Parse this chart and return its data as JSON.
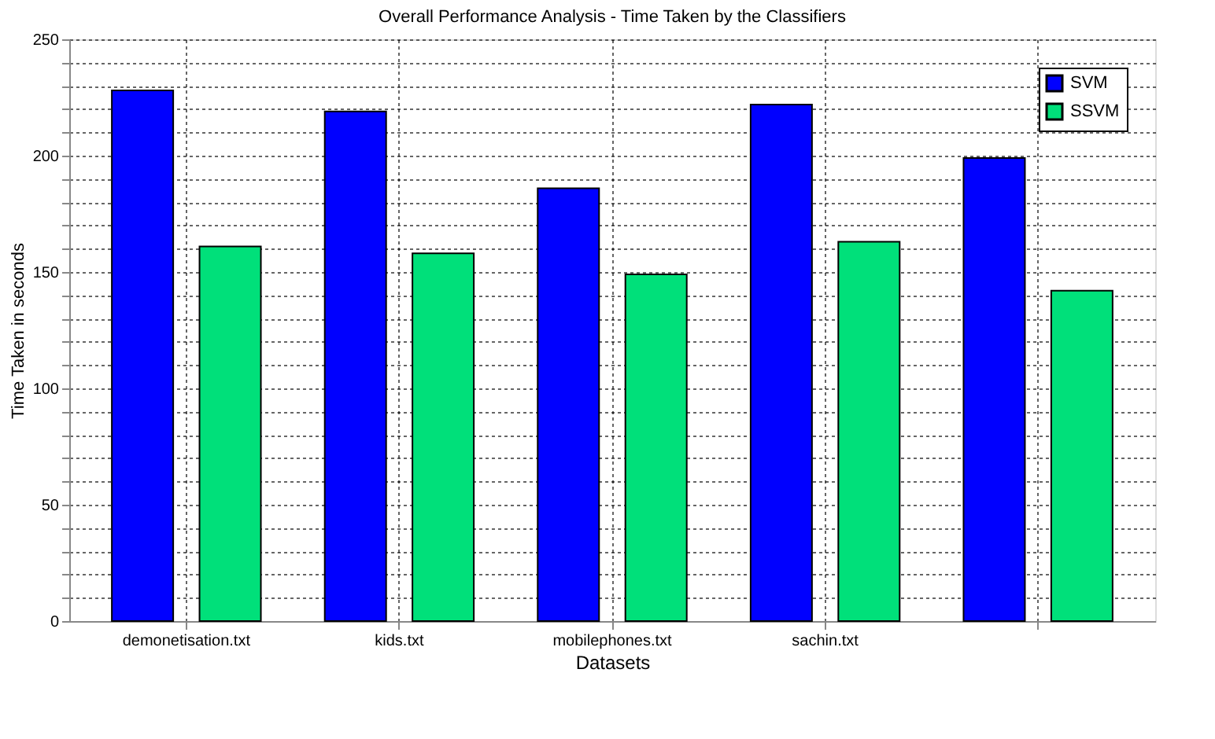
{
  "chart_data": {
    "type": "bar",
    "title": "Overall Performance Analysis - Time Taken by the Classifiers",
    "xlabel": "Datasets",
    "ylabel": "Time Taken in seconds",
    "categories": [
      "demonetisation.txt",
      "kids.txt",
      "mobilephones.txt",
      "sachin.txt",
      null
    ],
    "series": [
      {
        "name": "SVM",
        "color": "#0000ff",
        "values": [
          228,
          219,
          186,
          222,
          199
        ]
      },
      {
        "name": "SSVM",
        "color": "#00e07a",
        "values": [
          161,
          158,
          149,
          163,
          142
        ]
      }
    ],
    "ylim": [
      0,
      250
    ],
    "yticks": [
      0,
      {
        "value": 10,
        "label": null
      },
      {
        "value": 20,
        "label": null
      },
      {
        "value": 30,
        "label": null
      },
      {
        "value": 40,
        "label": null
      },
      50,
      {
        "value": 60,
        "label": null
      },
      {
        "value": 70,
        "label": null
      },
      {
        "value": 80,
        "label": null
      },
      {
        "value": 90,
        "label": null
      },
      100,
      {
        "value": 110,
        "label": null
      },
      {
        "value": 120,
        "label": null
      },
      {
        "value": 130,
        "label": null
      },
      {
        "value": 140,
        "label": null
      },
      150,
      {
        "value": 160,
        "label": null
      },
      {
        "value": 170,
        "label": null
      },
      {
        "value": 180,
        "label": null
      },
      {
        "value": 190,
        "label": null
      },
      200,
      {
        "value": 210,
        "label": null
      },
      {
        "value": 220,
        "label": null
      },
      {
        "value": 230,
        "label": null
      },
      {
        "value": 240,
        "label": null
      },
      250
    ],
    "grid": true,
    "legend": "top right"
  }
}
